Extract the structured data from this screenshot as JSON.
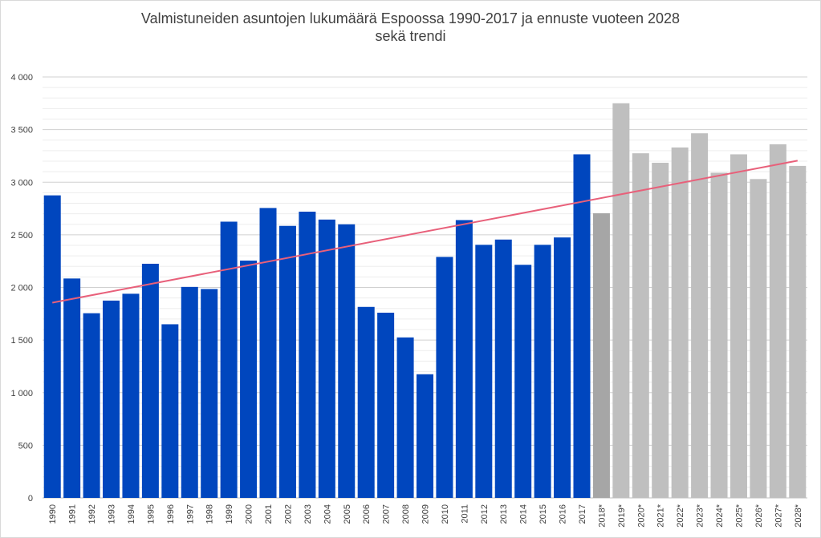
{
  "chart_data": {
    "type": "bar",
    "title": [
      "Valmistuneiden asuntojen lukumäärä Espoossa 1990-2017 ja ennuste vuoteen 2028",
      "sekä trendi"
    ],
    "xlabel": "",
    "ylabel": "",
    "ylim": [
      0,
      4000
    ],
    "yticks": [
      {
        "value": 0,
        "label": "0"
      },
      {
        "value": 500,
        "label": "500"
      },
      {
        "value": 1000,
        "label": "1 000"
      },
      {
        "value": 1500,
        "label": "1 500"
      },
      {
        "value": 2000,
        "label": "2 000"
      },
      {
        "value": 2500,
        "label": "2 500"
      },
      {
        "value": 3000,
        "label": "3 000"
      },
      {
        "value": 3500,
        "label": "3 500"
      },
      {
        "value": 4000,
        "label": "4 000"
      }
    ],
    "grid": true,
    "minor_grid": true,
    "legend": "none",
    "categories": [
      "1990",
      "1991",
      "1992",
      "1993",
      "1994",
      "1995",
      "1996",
      "1997",
      "1998",
      "1999",
      "2000",
      "2001",
      "2002",
      "2003",
      "2004",
      "2005",
      "2006",
      "2007",
      "2008",
      "2009",
      "2010",
      "2011",
      "2012",
      "2013",
      "2014",
      "2015",
      "2016",
      "2017",
      "2018*",
      "2019*",
      "2020*",
      "2021*",
      "2022*",
      "2023*",
      "2024*",
      "2025*",
      "2026*",
      "2027*",
      "2028*"
    ],
    "values": [
      2875,
      2085,
      1755,
      1875,
      1940,
      2225,
      1650,
      2005,
      1985,
      2625,
      2255,
      2755,
      2585,
      2720,
      2645,
      2600,
      1815,
      1760,
      1525,
      1175,
      2290,
      2640,
      2405,
      2455,
      2215,
      2405,
      2475,
      3265,
      2705,
      3750,
      3275,
      3185,
      3330,
      3465,
      3090,
      3265,
      3030,
      3360,
      3155
    ],
    "bar_colors": {
      "actual": "#0046be",
      "estimate_first": "#a6a6a6",
      "forecast": "#bfbfbf"
    },
    "trend": {
      "type": "linear",
      "color": "#e8607a",
      "start_value": 1855,
      "end_value": 3205
    }
  }
}
